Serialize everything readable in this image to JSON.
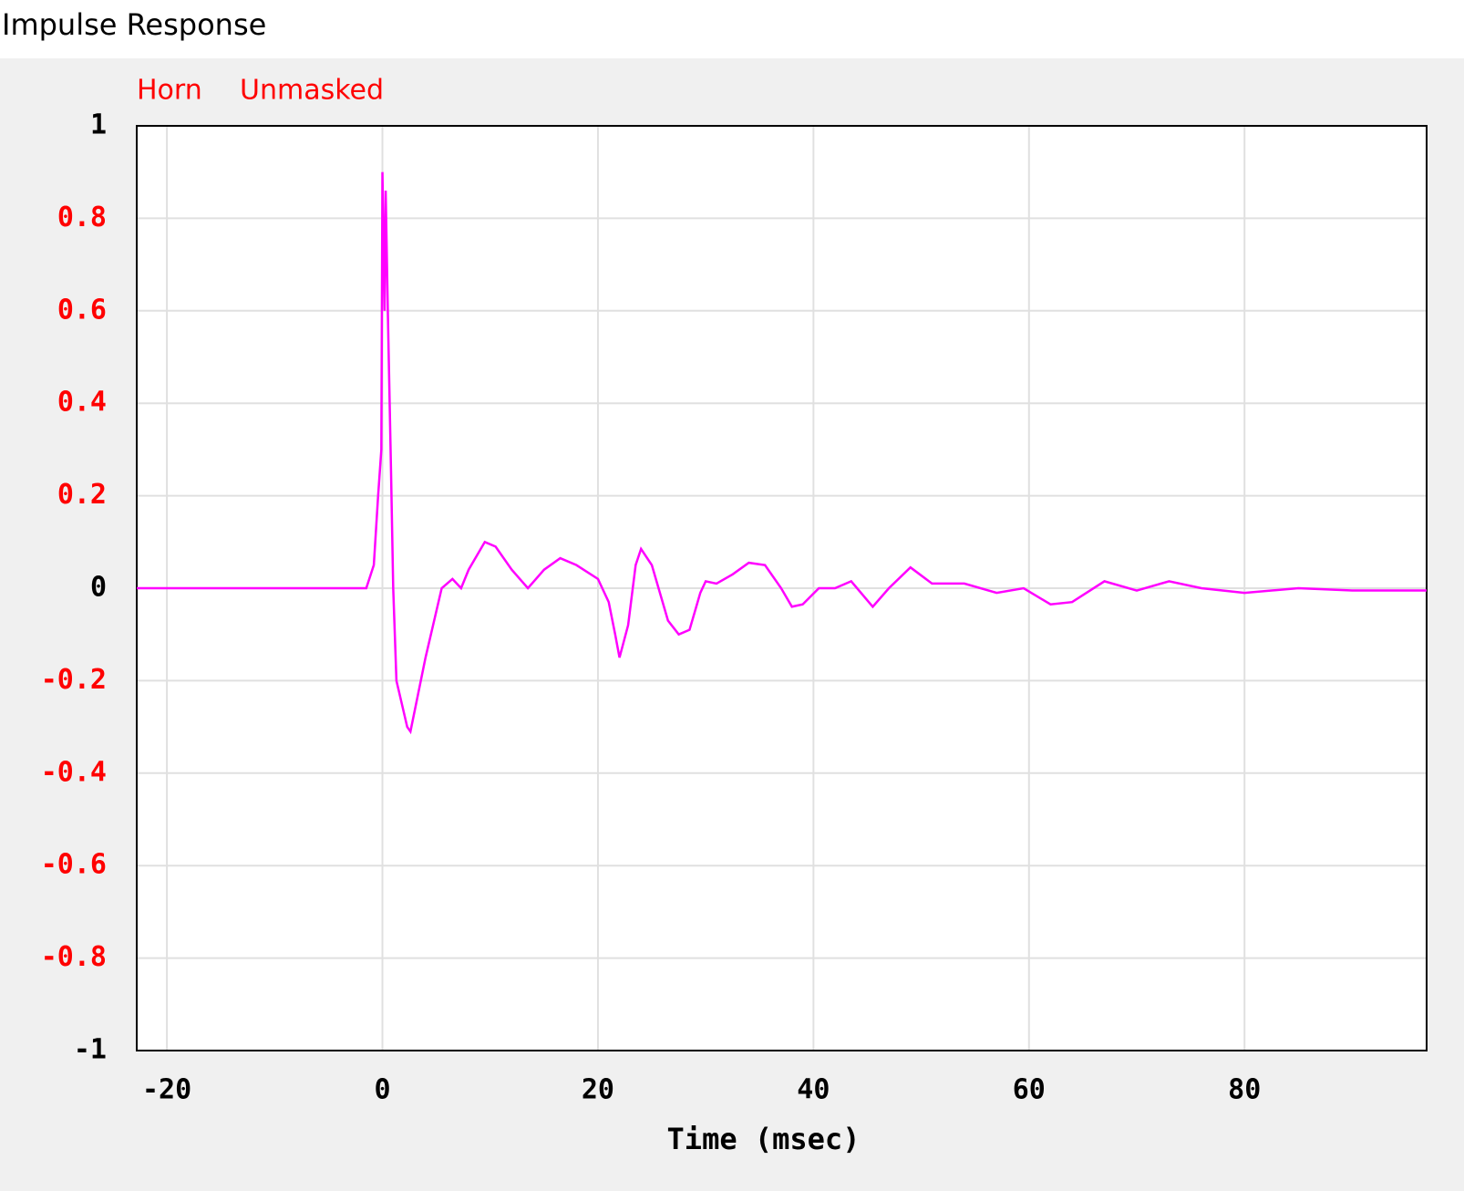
{
  "chart_data": {
    "type": "line",
    "title": "Impulse Response",
    "legend_color": "#ff0000",
    "legend_note": "Unmasked",
    "xlabel": "Time (msec)",
    "xlim": [
      -22.8,
      96.9
    ],
    "xticks": [
      -20,
      0,
      20,
      40,
      60,
      80
    ],
    "ylim": [
      -1,
      1
    ],
    "yticks": [
      -1,
      -0.8,
      -0.6,
      -0.4,
      -0.2,
      0,
      0.2,
      0.4,
      0.6,
      0.8,
      1
    ],
    "ytick_colors": [
      "#000000",
      "#ff0000",
      "#ff0000",
      "#ff0000",
      "#ff0000",
      "#000000",
      "#ff0000",
      "#ff0000",
      "#ff0000",
      "#ff0000",
      "#000000"
    ],
    "grid": true,
    "x": [
      -22.8,
      -1.5,
      -0.8,
      -0.4,
      -0.1,
      0,
      0.2,
      0.3,
      0.5,
      0.8,
      1.0,
      1.3,
      2.3,
      2.6,
      4,
      5.5,
      6.5,
      7.3,
      8,
      9.5,
      10.5,
      12,
      13.5,
      15,
      16.5,
      18,
      20,
      21,
      21.6,
      22,
      22.8,
      23.5,
      24,
      25,
      26.5,
      27.5,
      28.5,
      29.5,
      30,
      31,
      32.5,
      34,
      35.5,
      37,
      38,
      39,
      40.5,
      42,
      43.5,
      45.5,
      47,
      49,
      51,
      54,
      57,
      59.5,
      62,
      64,
      67,
      70,
      73,
      76,
      80,
      85,
      90,
      96.9
    ],
    "series": [
      {
        "name": "Horn",
        "color": "#ff00ff",
        "values": [
          0,
          0,
          0.05,
          0.2,
          0.3,
          0.9,
          0.6,
          0.86,
          0.6,
          0.25,
          0,
          -0.2,
          -0.3,
          -0.31,
          -0.15,
          0,
          0.02,
          0,
          0.04,
          0.1,
          0.09,
          0.04,
          0,
          0.04,
          0.065,
          0.05,
          0.02,
          -0.03,
          -0.1,
          -0.15,
          -0.08,
          0.05,
          0.085,
          0.05,
          -0.07,
          -0.1,
          -0.09,
          -0.01,
          0.015,
          0.01,
          0.03,
          0.055,
          0.05,
          0,
          -0.04,
          -0.035,
          0,
          0,
          0.015,
          -0.04,
          0,
          0.045,
          0.01,
          0.01,
          -0.01,
          0,
          -0.035,
          -0.03,
          0.015,
          -0.005,
          0.015,
          0,
          -0.01,
          0,
          -0.005,
          -0.005
        ]
      }
    ]
  }
}
